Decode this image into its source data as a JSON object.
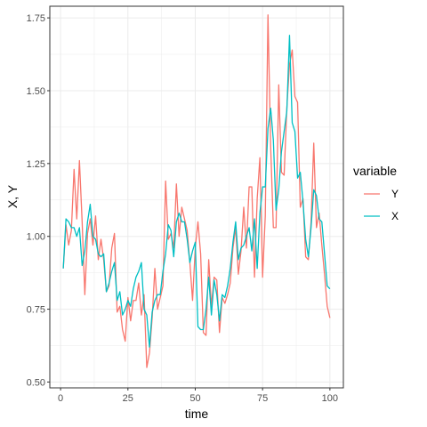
{
  "chart_data": {
    "type": "line",
    "xlabel": "time",
    "ylabel": "X, Y",
    "xlim": [
      -4,
      105
    ],
    "ylim": [
      0.48,
      1.79
    ],
    "x_ticks": [
      0,
      25,
      50,
      75,
      100
    ],
    "y_ticks": [
      0.5,
      0.75,
      1.0,
      1.25,
      1.5,
      1.75
    ],
    "x_tick_labels": [
      "0",
      "25",
      "50",
      "75",
      "100"
    ],
    "y_tick_labels": [
      "0.50",
      "0.75",
      "1.00",
      "1.25",
      "1.50",
      "1.75"
    ],
    "grid": true,
    "legend": {
      "title": "variable",
      "position": "right"
    },
    "series": [
      {
        "name": "Y",
        "color": "#F8766D",
        "x": [
          1,
          2,
          3,
          4,
          5,
          6,
          7,
          8,
          9,
          10,
          11,
          12,
          13,
          14,
          15,
          16,
          17,
          18,
          19,
          20,
          21,
          22,
          23,
          24,
          25,
          26,
          27,
          28,
          29,
          30,
          31,
          32,
          33,
          34,
          35,
          36,
          37,
          38,
          39,
          40,
          41,
          42,
          43,
          44,
          45,
          46,
          47,
          48,
          49,
          50,
          51,
          52,
          53,
          54,
          55,
          56,
          57,
          58,
          59,
          60,
          61,
          62,
          63,
          64,
          65,
          66,
          67,
          68,
          69,
          70,
          71,
          72,
          73,
          74,
          75,
          76,
          77,
          78,
          79,
          80,
          81,
          82,
          83,
          84,
          85,
          86,
          87,
          88,
          89,
          90,
          91,
          92,
          93,
          94,
          95,
          96,
          97,
          98,
          99,
          100
        ],
        "values": [
          0.89,
          1.04,
          0.97,
          1.02,
          1.23,
          1.06,
          1.26,
          1.05,
          0.8,
          1.01,
          1.06,
          0.97,
          1.07,
          0.92,
          0.99,
          0.92,
          0.81,
          0.83,
          0.96,
          1.01,
          0.74,
          0.76,
          0.68,
          0.64,
          0.79,
          0.71,
          0.78,
          0.78,
          0.84,
          0.73,
          0.8,
          0.55,
          0.6,
          0.72,
          0.89,
          0.75,
          0.79,
          0.83,
          1.19,
          0.99,
          1.01,
          0.96,
          1.18,
          1.0,
          1.1,
          1.06,
          1.02,
          0.91,
          0.78,
          0.96,
          1.05,
          0.94,
          0.67,
          0.66,
          0.92,
          0.76,
          0.86,
          0.85,
          0.67,
          0.79,
          0.77,
          0.8,
          0.84,
          0.96,
          1.03,
          0.87,
          0.95,
          1.1,
          0.96,
          1.17,
          1.17,
          0.86,
          1.13,
          1.27,
          0.86,
          1.07,
          1.76,
          1.31,
          1.03,
          1.03,
          1.52,
          1.22,
          1.21,
          1.44,
          1.59,
          1.64,
          1.48,
          1.46,
          1.1,
          1.13,
          0.93,
          0.92,
          1.05,
          1.32,
          1.03,
          1.08,
          0.97,
          0.87,
          0.76,
          0.72
        ]
      },
      {
        "name": "X",
        "color": "#00BFC4",
        "x": [
          1,
          2,
          3,
          4,
          5,
          6,
          7,
          8,
          9,
          10,
          11,
          12,
          13,
          14,
          15,
          16,
          17,
          18,
          19,
          20,
          21,
          22,
          23,
          24,
          25,
          26,
          27,
          28,
          29,
          30,
          31,
          32,
          33,
          34,
          35,
          36,
          37,
          38,
          39,
          40,
          41,
          42,
          43,
          44,
          45,
          46,
          47,
          48,
          49,
          50,
          51,
          52,
          53,
          54,
          55,
          56,
          57,
          58,
          59,
          60,
          61,
          62,
          63,
          64,
          65,
          66,
          67,
          68,
          69,
          70,
          71,
          72,
          73,
          74,
          75,
          76,
          77,
          78,
          79,
          80,
          81,
          82,
          83,
          84,
          85,
          86,
          87,
          88,
          89,
          90,
          91,
          92,
          93,
          94,
          95,
          96,
          97,
          98,
          99,
          100
        ],
        "values": [
          0.89,
          1.06,
          1.05,
          1.03,
          1.03,
          1.0,
          1.03,
          0.9,
          0.95,
          1.05,
          1.11,
          1.0,
          0.99,
          0.94,
          0.93,
          0.94,
          0.81,
          0.84,
          0.88,
          0.91,
          0.78,
          0.81,
          0.73,
          0.75,
          0.78,
          0.76,
          0.82,
          0.86,
          0.88,
          0.91,
          0.75,
          0.73,
          0.62,
          0.74,
          0.78,
          0.8,
          0.8,
          0.88,
          0.94,
          1.04,
          1.02,
          0.93,
          1.05,
          1.08,
          1.05,
          1.05,
          0.99,
          0.91,
          0.95,
          0.98,
          0.69,
          0.68,
          0.68,
          0.75,
          0.86,
          0.73,
          0.85,
          0.8,
          0.71,
          0.8,
          0.79,
          0.83,
          0.89,
          0.98,
          1.05,
          0.92,
          0.96,
          0.97,
          1.0,
          1.03,
          0.95,
          1.06,
          0.89,
          1.08,
          1.17,
          1.17,
          1.37,
          1.44,
          1.33,
          1.09,
          1.16,
          1.29,
          1.36,
          1.43,
          1.69,
          1.39,
          1.36,
          1.2,
          1.22,
          1.12,
          0.99,
          0.93,
          1.03,
          1.16,
          1.14,
          1.06,
          1.05,
          0.94,
          0.83,
          0.82
        ]
      }
    ]
  }
}
